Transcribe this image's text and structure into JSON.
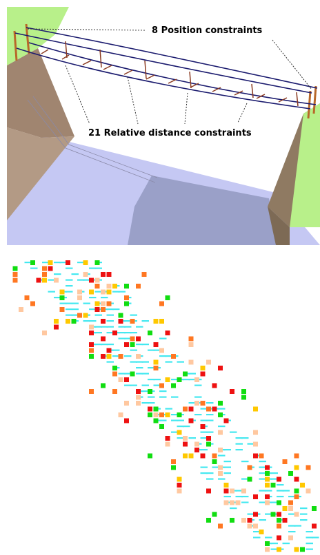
{
  "labels": {
    "position_constraints": "8 Position constraints",
    "relative_constraints": "21 Relative distance constraints"
  },
  "colors": {
    "sky": "#ffffff",
    "grass": "#b8f08a",
    "cliff_left": "#9a8068",
    "cliff_right": "#8a7560",
    "water": "#c4c8f4",
    "rope": "#1a1a6e",
    "plank": "#8a3a20",
    "post": "#b8682a"
  },
  "legend_colors": {
    "red": "#ee1111",
    "orange": "#ff7722",
    "yellow": "#ffc800",
    "green": "#11dd11",
    "peach": "#ffc8a0",
    "cyan": "#44e8f0"
  }
}
